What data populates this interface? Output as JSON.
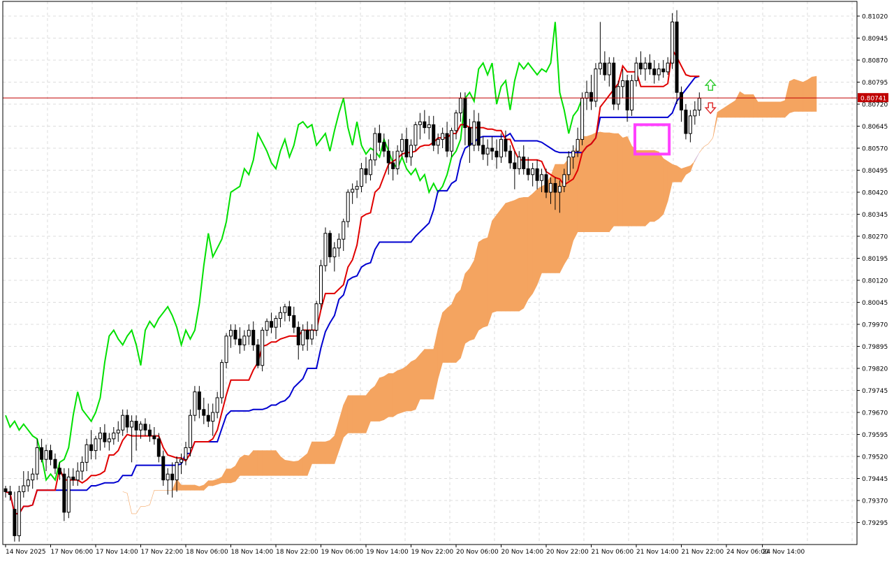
{
  "chart_data": {
    "type": "candlestick",
    "price_axis": {
      "min": 0.7922,
      "max": 0.8107,
      "ticks": [
        "0.81020",
        "0.80945",
        "0.80870",
        "0.80795",
        "0.80720",
        "0.80645",
        "0.80570",
        "0.80495",
        "0.80420",
        "0.80345",
        "0.80270",
        "0.80195",
        "0.80120",
        "0.80045",
        "0.79970",
        "0.79895",
        "0.79820",
        "0.79745",
        "0.79670",
        "0.79595",
        "0.79520",
        "0.79445",
        "0.79370",
        "0.79295"
      ]
    },
    "time_axis": {
      "bars_span": [
        0,
        188
      ],
      "labels": [
        {
          "bar": 0,
          "text": "14 Nov 2025"
        },
        {
          "bar": 10,
          "text": "17 Nov 06:00"
        },
        {
          "bar": 20,
          "text": "17 Nov 14:00"
        },
        {
          "bar": 30,
          "text": "17 Nov 22:00"
        },
        {
          "bar": 40,
          "text": "18 Nov 06:00"
        },
        {
          "bar": 50,
          "text": "18 Nov 14:00"
        },
        {
          "bar": 60,
          "text": "18 Nov 22:00"
        },
        {
          "bar": 70,
          "text": "19 Nov 06:00"
        },
        {
          "bar": 80,
          "text": "19 Nov 14:00"
        },
        {
          "bar": 90,
          "text": "19 Nov 22:00"
        },
        {
          "bar": 100,
          "text": "20 Nov 06:00"
        },
        {
          "bar": 110,
          "text": "20 Nov 14:00"
        },
        {
          "bar": 120,
          "text": "20 Nov 22:00"
        },
        {
          "bar": 130,
          "text": "21 Nov 06:00"
        },
        {
          "bar": 140,
          "text": "21 Nov 14:00"
        },
        {
          "bar": 150,
          "text": "21 Nov 22:00"
        },
        {
          "bar": 160,
          "text": "24 Nov 06:00"
        },
        {
          "bar": 168,
          "text": "24 Nov 14:00"
        }
      ]
    },
    "current_price": {
      "value": 0.80741,
      "label": "0.80741",
      "color": "#c00000"
    },
    "colors": {
      "tenkan": "#e00000",
      "kijun": "#0000d0",
      "chikou": "#00e000",
      "kumo_bull": "#f4a460",
      "kumo_bear": "#d8bfd8",
      "box": "#ff40ff",
      "arrow_up": "#33cc33",
      "arrow_down": "#e03030",
      "grid": "#dcdcdc"
    },
    "candles": [
      [
        0.7941,
        0.7942,
        0.7938,
        0.794
      ],
      [
        0.794,
        0.7942,
        0.7937,
        0.7939
      ],
      [
        0.7934,
        0.794,
        0.7923,
        0.7925
      ],
      [
        0.7925,
        0.7942,
        0.7923,
        0.794
      ],
      [
        0.794,
        0.7947,
        0.7938,
        0.7942
      ],
      [
        0.7942,
        0.7947,
        0.794,
        0.7944
      ],
      [
        0.7944,
        0.7948,
        0.7941,
        0.7946
      ],
      [
        0.7946,
        0.7958,
        0.7944,
        0.7955
      ],
      [
        0.7955,
        0.7958,
        0.795,
        0.7951
      ],
      [
        0.7951,
        0.7956,
        0.7947,
        0.7954
      ],
      [
        0.7954,
        0.7956,
        0.7949,
        0.7951
      ],
      [
        0.7951,
        0.7953,
        0.7946,
        0.7948
      ],
      [
        0.7948,
        0.795,
        0.7944,
        0.7946
      ],
      [
        0.7946,
        0.7948,
        0.793,
        0.7933
      ],
      [
        0.7933,
        0.7948,
        0.7931,
        0.7945
      ],
      [
        0.7945,
        0.7948,
        0.7942,
        0.7944
      ],
      [
        0.7944,
        0.795,
        0.7942,
        0.7947
      ],
      [
        0.7947,
        0.7952,
        0.7944,
        0.795
      ],
      [
        0.795,
        0.7958,
        0.7947,
        0.7956
      ],
      [
        0.7956,
        0.7961,
        0.7951,
        0.7954
      ],
      [
        0.7954,
        0.7959,
        0.7951,
        0.7958
      ],
      [
        0.7958,
        0.7962,
        0.7954,
        0.796
      ],
      [
        0.796,
        0.7963,
        0.7955,
        0.7957
      ],
      [
        0.7957,
        0.796,
        0.7954,
        0.7958
      ],
      [
        0.7958,
        0.7962,
        0.7956,
        0.796
      ],
      [
        0.796,
        0.7964,
        0.7957,
        0.7961
      ],
      [
        0.7961,
        0.7968,
        0.7959,
        0.7966
      ],
      [
        0.7966,
        0.7968,
        0.796,
        0.7962
      ],
      [
        0.7962,
        0.7966,
        0.795,
        0.7964
      ],
      [
        0.7964,
        0.7966,
        0.7954,
        0.7961
      ],
      [
        0.7961,
        0.7964,
        0.7958,
        0.7963
      ],
      [
        0.7963,
        0.7965,
        0.7959,
        0.7961
      ],
      [
        0.7961,
        0.7963,
        0.7957,
        0.7959
      ],
      [
        0.7959,
        0.7962,
        0.7956,
        0.7958
      ],
      [
        0.7958,
        0.796,
        0.795,
        0.7952
      ],
      [
        0.7952,
        0.7954,
        0.7942,
        0.7944
      ],
      [
        0.7944,
        0.7948,
        0.7939,
        0.7946
      ],
      [
        0.7946,
        0.795,
        0.7938,
        0.7944
      ],
      [
        0.7944,
        0.7952,
        0.794,
        0.795
      ],
      [
        0.795,
        0.7953,
        0.7946,
        0.7951
      ],
      [
        0.7951,
        0.7957,
        0.7949,
        0.7955
      ],
      [
        0.7955,
        0.7968,
        0.7952,
        0.7966
      ],
      [
        0.7966,
        0.7976,
        0.7964,
        0.7974
      ],
      [
        0.7974,
        0.7976,
        0.7965,
        0.7968
      ],
      [
        0.7968,
        0.7972,
        0.7963,
        0.7966
      ],
      [
        0.7966,
        0.797,
        0.7962,
        0.7964
      ],
      [
        0.7964,
        0.797,
        0.7959,
        0.7967
      ],
      [
        0.7967,
        0.7974,
        0.7965,
        0.7972
      ],
      [
        0.7972,
        0.7985,
        0.797,
        0.7984
      ],
      [
        0.7984,
        0.7994,
        0.7982,
        0.7993
      ],
      [
        0.7993,
        0.7997,
        0.7989,
        0.7995
      ],
      [
        0.7995,
        0.7997,
        0.799,
        0.7992
      ],
      [
        0.7992,
        0.7996,
        0.7987,
        0.799
      ],
      [
        0.799,
        0.7995,
        0.7988,
        0.7993
      ],
      [
        0.7993,
        0.7997,
        0.799,
        0.7995
      ],
      [
        0.7995,
        0.7998,
        0.7988,
        0.799
      ],
      [
        0.799,
        0.7992,
        0.7982,
        0.7983
      ],
      [
        0.7983,
        0.7996,
        0.7981,
        0.7995
      ],
      [
        0.7995,
        0.7999,
        0.7993,
        0.7998
      ],
      [
        0.7998,
        0.8001,
        0.7994,
        0.7996
      ],
      [
        0.7996,
        0.8,
        0.7992,
        0.7999
      ],
      [
        0.7999,
        0.8003,
        0.7996,
        0.8001
      ],
      [
        0.8001,
        0.8004,
        0.7998,
        0.8003
      ],
      [
        0.8003,
        0.8005,
        0.7998,
        0.8
      ],
      [
        0.8,
        0.8003,
        0.7994,
        0.7996
      ],
      [
        0.7996,
        0.7998,
        0.7985,
        0.799
      ],
      [
        0.799,
        0.7997,
        0.7988,
        0.7995
      ],
      [
        0.7995,
        0.7998,
        0.7988,
        0.7992
      ],
      [
        0.7992,
        0.7997,
        0.799,
        0.7995
      ],
      [
        0.7995,
        0.8005,
        0.7993,
        0.8004
      ],
      [
        0.8004,
        0.8019,
        0.8002,
        0.8017
      ],
      [
        0.8017,
        0.803,
        0.8015,
        0.8028
      ],
      [
        0.8028,
        0.8029,
        0.8018,
        0.802
      ],
      [
        0.802,
        0.8025,
        0.8015,
        0.8023
      ],
      [
        0.8023,
        0.8028,
        0.802,
        0.8026
      ],
      [
        0.8026,
        0.8033,
        0.8022,
        0.8032
      ],
      [
        0.8032,
        0.8043,
        0.803,
        0.8042
      ],
      [
        0.8042,
        0.8045,
        0.8038,
        0.8043
      ],
      [
        0.8043,
        0.8046,
        0.804,
        0.8044
      ],
      [
        0.8044,
        0.8052,
        0.8042,
        0.805
      ],
      [
        0.805,
        0.8054,
        0.8045,
        0.8048
      ],
      [
        0.8048,
        0.8055,
        0.8046,
        0.8053
      ],
      [
        0.8053,
        0.8064,
        0.8051,
        0.8062
      ],
      [
        0.8062,
        0.8065,
        0.8056,
        0.8059
      ],
      [
        0.8059,
        0.8062,
        0.8054,
        0.8056
      ],
      [
        0.8056,
        0.806,
        0.8048,
        0.8052
      ],
      [
        0.8052,
        0.8056,
        0.8046,
        0.805
      ],
      [
        0.805,
        0.8058,
        0.8048,
        0.8056
      ],
      [
        0.8056,
        0.8062,
        0.8054,
        0.806
      ],
      [
        0.806,
        0.8064,
        0.8052,
        0.8054
      ],
      [
        0.8054,
        0.806,
        0.8051,
        0.8058
      ],
      [
        0.8058,
        0.8066,
        0.8056,
        0.8065
      ],
      [
        0.8065,
        0.8069,
        0.806,
        0.8066
      ],
      [
        0.8066,
        0.807,
        0.8062,
        0.8064
      ],
      [
        0.8064,
        0.8068,
        0.806,
        0.8065
      ],
      [
        0.8065,
        0.8068,
        0.8056,
        0.8058
      ],
      [
        0.8058,
        0.8062,
        0.8055,
        0.806
      ],
      [
        0.806,
        0.8064,
        0.8057,
        0.8062
      ],
      [
        0.8062,
        0.8066,
        0.8054,
        0.8056
      ],
      [
        0.8056,
        0.8064,
        0.8054,
        0.8063
      ],
      [
        0.8063,
        0.807,
        0.806,
        0.8069
      ],
      [
        0.8069,
        0.8076,
        0.8066,
        0.8074
      ],
      [
        0.8074,
        0.8076,
        0.8058,
        0.8064
      ],
      [
        0.8064,
        0.8067,
        0.8052,
        0.8058
      ],
      [
        0.8058,
        0.807,
        0.8056,
        0.8066
      ],
      [
        0.8066,
        0.8069,
        0.8056,
        0.8058
      ],
      [
        0.8058,
        0.8061,
        0.8053,
        0.8055
      ],
      [
        0.8055,
        0.806,
        0.8051,
        0.8057
      ],
      [
        0.8057,
        0.8061,
        0.8053,
        0.8056
      ],
      [
        0.8056,
        0.806,
        0.805,
        0.8054
      ],
      [
        0.8054,
        0.8062,
        0.8052,
        0.806
      ],
      [
        0.806,
        0.8063,
        0.8054,
        0.8056
      ],
      [
        0.8056,
        0.8058,
        0.805,
        0.8052
      ],
      [
        0.8052,
        0.8056,
        0.8043,
        0.805
      ],
      [
        0.805,
        0.8056,
        0.8048,
        0.8054
      ],
      [
        0.8054,
        0.8058,
        0.8048,
        0.805
      ],
      [
        0.805,
        0.8054,
        0.8046,
        0.8048
      ],
      [
        0.8048,
        0.8052,
        0.8044,
        0.805
      ],
      [
        0.805,
        0.8053,
        0.8043,
        0.8046
      ],
      [
        0.8046,
        0.805,
        0.8042,
        0.8048
      ],
      [
        0.8048,
        0.805,
        0.804,
        0.8042
      ],
      [
        0.8042,
        0.8047,
        0.8038,
        0.8045
      ],
      [
        0.8045,
        0.8047,
        0.8036,
        0.8042
      ],
      [
        0.8042,
        0.8046,
        0.8035,
        0.8044
      ],
      [
        0.8044,
        0.805,
        0.8042,
        0.8048
      ],
      [
        0.8048,
        0.8056,
        0.8046,
        0.8054
      ],
      [
        0.8054,
        0.8058,
        0.805,
        0.8056
      ],
      [
        0.8056,
        0.8064,
        0.8054,
        0.806
      ],
      [
        0.806,
        0.8076,
        0.8058,
        0.8074
      ],
      [
        0.8074,
        0.808,
        0.807,
        0.8076
      ],
      [
        0.8076,
        0.8082,
        0.807,
        0.8073
      ],
      [
        0.8073,
        0.8086,
        0.8071,
        0.8084
      ],
      [
        0.8084,
        0.81,
        0.8082,
        0.8086
      ],
      [
        0.8086,
        0.809,
        0.808,
        0.8082
      ],
      [
        0.8082,
        0.8088,
        0.8078,
        0.8086
      ],
      [
        0.8086,
        0.8088,
        0.807,
        0.8072
      ],
      [
        0.8072,
        0.808,
        0.807,
        0.8078
      ],
      [
        0.8078,
        0.8084,
        0.8074,
        0.808
      ],
      [
        0.808,
        0.8082,
        0.8066,
        0.807
      ],
      [
        0.807,
        0.8082,
        0.8068,
        0.808
      ],
      [
        0.808,
        0.8088,
        0.8078,
        0.8086
      ],
      [
        0.8086,
        0.809,
        0.8082,
        0.8084
      ],
      [
        0.8084,
        0.8088,
        0.808,
        0.8086
      ],
      [
        0.8086,
        0.8089,
        0.8082,
        0.8084
      ],
      [
        0.8084,
        0.8087,
        0.8079,
        0.8082
      ],
      [
        0.8082,
        0.8086,
        0.808,
        0.8084
      ],
      [
        0.8084,
        0.8087,
        0.8081,
        0.8083
      ],
      [
        0.8083,
        0.8088,
        0.8082,
        0.8086
      ],
      [
        0.8086,
        0.8103,
        0.8084,
        0.81
      ],
      [
        0.81,
        0.8104,
        0.8072,
        0.8076
      ],
      [
        0.8076,
        0.8078,
        0.8066,
        0.807
      ],
      [
        0.807,
        0.8072,
        0.806,
        0.8062
      ],
      [
        0.8062,
        0.807,
        0.8059,
        0.8068
      ],
      [
        0.8068,
        0.8073,
        0.8065,
        0.807
      ],
      [
        0.807,
        0.8076,
        0.8068,
        0.8074
      ]
    ]
  }
}
